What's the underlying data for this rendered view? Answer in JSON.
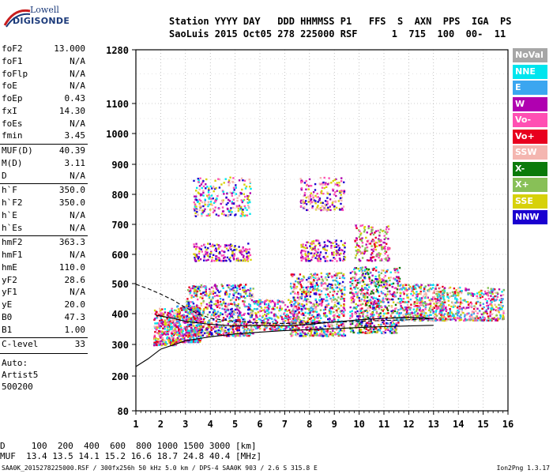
{
  "logo": {
    "line1": "Lowell",
    "line2": "DIGISONDE"
  },
  "header": {
    "line1": "Station YYYY DAY   DDD HHMMSS P1   FFS  S  AXN  PPS  IGA  PS",
    "line2": "SaoLuis 2015 Oct05 278 225000 RSF      1  715  100  00-  11"
  },
  "params": [
    {
      "label": "foF2",
      "value": "13.000"
    },
    {
      "label": "foF1",
      "value": "N/A"
    },
    {
      "label": "foFlp",
      "value": "N/A"
    },
    {
      "label": "foE",
      "value": "N/A"
    },
    {
      "label": "foEp",
      "value": "0.43"
    },
    {
      "label": "fxI",
      "value": "14.30"
    },
    {
      "label": "foEs",
      "value": "N/A"
    },
    {
      "label": "fmin",
      "value": "3.45"
    },
    {
      "label": "MUF(D)",
      "value": "40.39"
    },
    {
      "label": "M(D)",
      "value": "3.11"
    },
    {
      "label": "D",
      "value": "N/A"
    },
    {
      "label": "h`F",
      "value": "350.0"
    },
    {
      "label": "h`F2",
      "value": "350.0"
    },
    {
      "label": "h`E",
      "value": "N/A"
    },
    {
      "label": "h`Es",
      "value": "N/A"
    },
    {
      "label": "hmF2",
      "value": "363.3"
    },
    {
      "label": "hmF1",
      "value": "N/A"
    },
    {
      "label": "hmE",
      "value": "110.0"
    },
    {
      "label": "yF2",
      "value": "28.6"
    },
    {
      "label": "yF1",
      "value": "N/A"
    },
    {
      "label": "yE",
      "value": "20.0"
    },
    {
      "label": "B0",
      "value": "47.3"
    },
    {
      "label": "B1",
      "value": "1.00"
    },
    {
      "label": "C-level",
      "value": "33"
    }
  ],
  "auto": {
    "line1": "Auto:",
    "line2": "Artist5",
    "line3": "500200"
  },
  "legend": [
    {
      "label": "NoVal",
      "color": "#a6a6a6",
      "text_color": "#ffffff"
    },
    {
      "label": "NNE",
      "color": "#00e5ee",
      "text_color": "#ffffff"
    },
    {
      "label": "E",
      "color": "#3ba6f0",
      "text_color": "#ffffff"
    },
    {
      "label": "W",
      "color": "#b000b0",
      "text_color": "#ffffff"
    },
    {
      "label": "Vo-",
      "color": "#ff4fb3",
      "text_color": "#ffffff"
    },
    {
      "label": "Vo+",
      "color": "#e8001e",
      "text_color": "#ffffff"
    },
    {
      "label": "SSW",
      "color": "#f4b6b0",
      "text_color": "#ffffff"
    },
    {
      "label": "X-",
      "color": "#0a7a0a",
      "text_color": "#ffffff"
    },
    {
      "label": "X+",
      "color": "#88c057",
      "text_color": "#ffffff"
    },
    {
      "label": "SSE",
      "color": "#d7d10a",
      "text_color": "#ffffff"
    },
    {
      "label": "NNW",
      "color": "#1a00d0",
      "text_color": "#ffffff"
    }
  ],
  "bottom": {
    "line1": "D     100  200  400  600  800 1000 1500 3000 [km]",
    "line2": "MUF  13.4 13.5 14.1 15.2 16.6 18.7 24.8 40.4 [MHz]",
    "footer_left": "SAA0K_2015278225000.RSF / 300fx256h 50 kHz 5.0 km / DPS-4 SAA0K 903 / 2.6 S 315.8 E",
    "footer_right": "Ion2Png 1.3.17"
  },
  "chart_data": {
    "type": "scatter",
    "xlim": [
      1,
      16
    ],
    "ylim": [
      80,
      1280
    ],
    "x_ticks": [
      1,
      2,
      3,
      4,
      5,
      6,
      7,
      8,
      9,
      10,
      11,
      12,
      13,
      14,
      15,
      16
    ],
    "y_ticks": [
      80,
      200,
      300,
      400,
      500,
      600,
      700,
      800,
      900,
      1000,
      1100,
      1280
    ],
    "grid": true,
    "legend_position": "right",
    "clusters": [
      {
        "x": [
          1.7,
          2.6
        ],
        "y": [
          300,
          420
        ],
        "n": 320,
        "colors": [
          "W",
          "Vo+",
          "Vo-",
          "SSE",
          "SSW",
          "NNE"
        ]
      },
      {
        "x": [
          2.6,
          3.6
        ],
        "y": [
          310,
          430
        ],
        "n": 380,
        "colors": [
          "W",
          "Vo+",
          "SSE",
          "NNE",
          "E",
          "Vo-"
        ]
      },
      {
        "x": [
          3.0,
          5.7
        ],
        "y": [
          330,
          500
        ],
        "n": 700,
        "colors": [
          "W",
          "Vo+",
          "Vo-",
          "SSE",
          "NNE",
          "E",
          "SSW",
          "X+",
          "NNW"
        ]
      },
      {
        "x": [
          3.3,
          5.6
        ],
        "y": [
          580,
          640
        ],
        "n": 180,
        "colors": [
          "W",
          "NNW",
          "Vo-",
          "SSE"
        ]
      },
      {
        "x": [
          3.3,
          5.6
        ],
        "y": [
          730,
          860
        ],
        "n": 250,
        "colors": [
          "SSE",
          "W",
          "Vo-",
          "NNW",
          "SSW",
          "NNE"
        ]
      },
      {
        "x": [
          5.7,
          7.5
        ],
        "y": [
          350,
          450
        ],
        "n": 300,
        "colors": [
          "SSE",
          "W",
          "Vo+",
          "NNE",
          "E",
          "Vo-"
        ]
      },
      {
        "x": [
          7.2,
          9.4
        ],
        "y": [
          330,
          540
        ],
        "n": 700,
        "colors": [
          "W",
          "Vo+",
          "Vo-",
          "NNE",
          "E",
          "SSE",
          "X+",
          "SSW",
          "NNW"
        ]
      },
      {
        "x": [
          7.6,
          9.4
        ],
        "y": [
          580,
          650
        ],
        "n": 160,
        "colors": [
          "W",
          "NNW",
          "Vo-",
          "SSE"
        ]
      },
      {
        "x": [
          7.6,
          9.4
        ],
        "y": [
          750,
          860
        ],
        "n": 180,
        "colors": [
          "W",
          "NNW",
          "SSE",
          "Vo-",
          "SSW"
        ]
      },
      {
        "x": [
          9.6,
          11.6
        ],
        "y": [
          340,
          560
        ],
        "n": 650,
        "colors": [
          "Vo+",
          "W",
          "Vo-",
          "SSE",
          "NNE",
          "E",
          "X+",
          "SSW",
          "X-",
          "NNW"
        ]
      },
      {
        "x": [
          9.8,
          11.2
        ],
        "y": [
          580,
          700
        ],
        "n": 180,
        "colors": [
          "W",
          "Vo-",
          "SSE",
          "X+",
          "Vo+"
        ]
      },
      {
        "x": [
          11.6,
          13.4
        ],
        "y": [
          380,
          500
        ],
        "n": 420,
        "colors": [
          "NNE",
          "E",
          "Vo+",
          "W",
          "Vo-",
          "SSE",
          "SSW",
          "X+"
        ]
      },
      {
        "x": [
          13.2,
          15.8
        ],
        "y": [
          380,
          490
        ],
        "n": 420,
        "colors": [
          "NNE",
          "E",
          "Vo-",
          "W",
          "SSE",
          "SSW",
          "X+",
          "Vo+"
        ]
      }
    ],
    "curves": [
      {
        "name": "",
        "style": "solid",
        "x": [
          1,
          1.5,
          2,
          3,
          4,
          5,
          6,
          7,
          8,
          9,
          10,
          11,
          12,
          13
        ],
        "y": [
          230,
          255,
          285,
          312,
          325,
          334,
          340,
          345,
          348,
          351,
          355,
          358,
          360,
          362
        ]
      },
      {
        "name": "",
        "style": "solid",
        "x": [
          1.8,
          2.5,
          3,
          3.5,
          4,
          5,
          6,
          7,
          8,
          9,
          10,
          11,
          12,
          13
        ],
        "y": [
          395,
          385,
          375,
          370,
          365,
          360,
          362,
          360,
          365,
          373,
          380,
          385,
          388,
          385
        ]
      },
      {
        "name": "",
        "style": "dashed",
        "x": [
          1,
          1.5,
          2,
          2.5,
          3,
          3.5,
          4,
          5,
          6,
          7,
          8,
          9,
          10,
          11,
          12,
          13
        ],
        "y": [
          498,
          483,
          465,
          445,
          420,
          400,
          385,
          375,
          370,
          368,
          370,
          372,
          375,
          378,
          380,
          385
        ]
      }
    ]
  }
}
